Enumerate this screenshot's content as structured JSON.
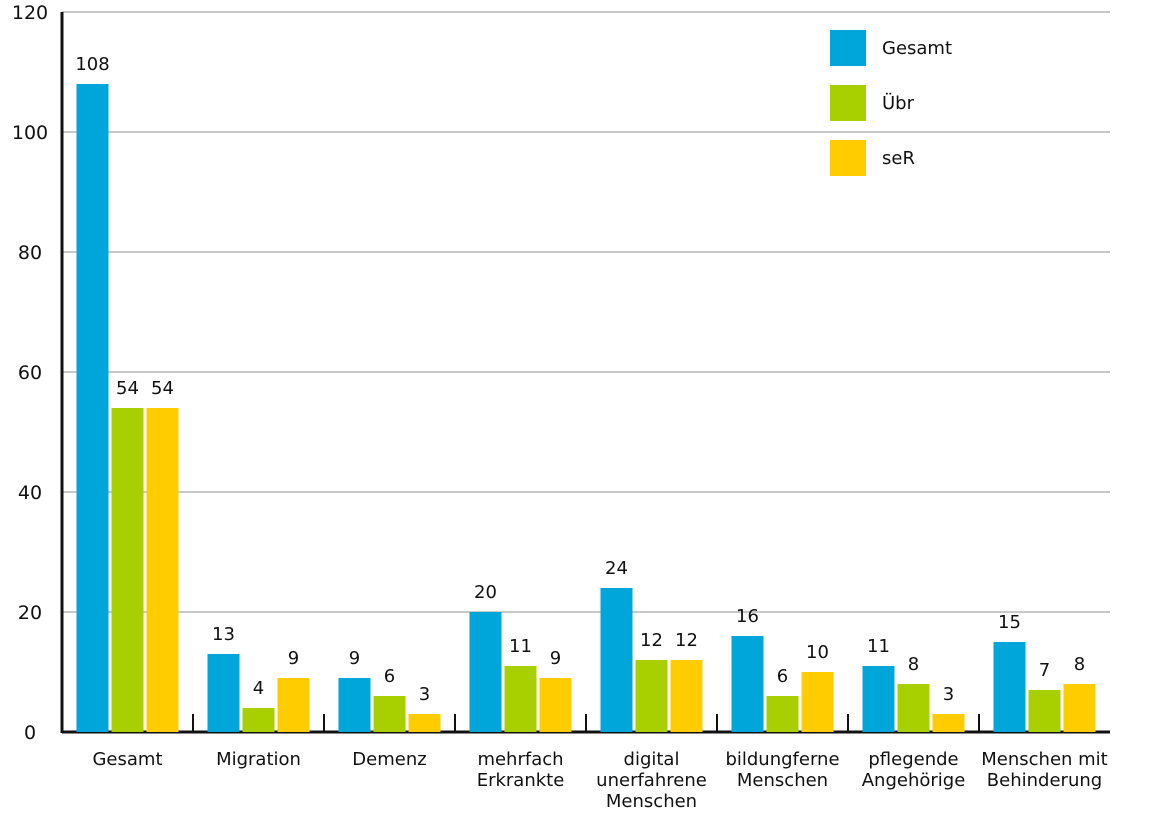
{
  "chart_data": {
    "type": "bar",
    "categories": [
      [
        "Gesamt"
      ],
      [
        "Migration"
      ],
      [
        "Demenz"
      ],
      [
        "mehrfach",
        "Erkrankte"
      ],
      [
        "digital",
        "unerfahrene",
        "Menschen"
      ],
      [
        "bildungferne",
        "Menschen"
      ],
      [
        "pflegende",
        "Angehörige"
      ],
      [
        "Menschen mit",
        "Behinderung"
      ]
    ],
    "series": [
      {
        "name": "Gesamt",
        "color": "#00a5d9",
        "values": [
          108,
          13,
          9,
          20,
          24,
          16,
          11,
          15
        ]
      },
      {
        "name": "Übr",
        "color": "#a8cf00",
        "values": [
          54,
          4,
          6,
          11,
          12,
          6,
          8,
          7
        ]
      },
      {
        "name": "seR",
        "color": "#ffcc00",
        "values": [
          54,
          9,
          3,
          9,
          12,
          10,
          3,
          8
        ]
      }
    ],
    "ylim": [
      0,
      120
    ],
    "yticks": [
      0,
      20,
      40,
      60,
      80,
      100,
      120
    ],
    "grid": true,
    "legend_position": "top-right",
    "data_labels": true
  }
}
